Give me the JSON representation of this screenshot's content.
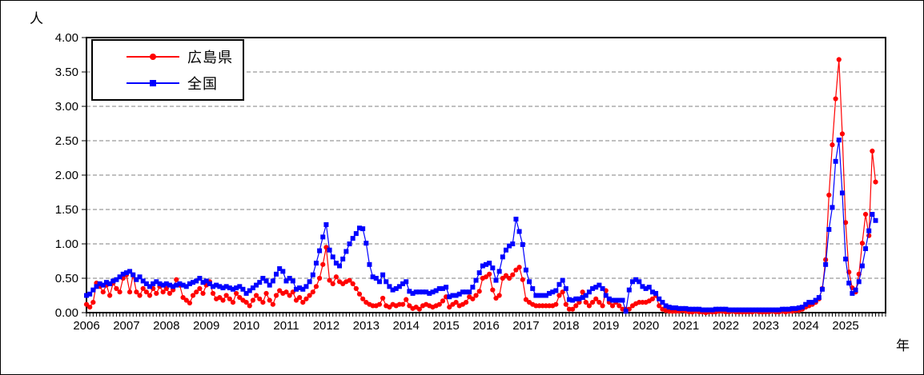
{
  "chart_data": {
    "type": "line",
    "title": "",
    "ylabel": "人",
    "xlabel": "年",
    "ylim": [
      0,
      4
    ],
    "ytick_step": 0.5,
    "ytick_labels": [
      "4.00",
      "3.50",
      "3.00",
      "2.50",
      "2.00",
      "1.50",
      "1.00",
      "0.50",
      "0.00"
    ],
    "x_years": [
      "2006",
      "2007",
      "2008",
      "2009",
      "2010",
      "2011",
      "2012",
      "2013",
      "2014",
      "2015",
      "2016",
      "2017",
      "2018",
      "2019",
      "2020",
      "2021",
      "2022",
      "2023",
      "2024",
      "2025"
    ],
    "frequency": "monthly",
    "start_month": "2006-01",
    "grid": "horizontal dashed",
    "grid_color": "#808080",
    "legend_position": "top-left-inside",
    "series": [
      {
        "name": "広島県",
        "color": "#FF0000",
        "marker": "circle",
        "values": [
          0.12,
          0.08,
          0.15,
          0.43,
          0.38,
          0.3,
          0.4,
          0.25,
          0.43,
          0.35,
          0.3,
          0.5,
          0.55,
          0.3,
          0.55,
          0.3,
          0.25,
          0.35,
          0.3,
          0.25,
          0.35,
          0.28,
          0.38,
          0.3,
          0.35,
          0.28,
          0.33,
          0.48,
          0.4,
          0.22,
          0.18,
          0.14,
          0.25,
          0.3,
          0.35,
          0.28,
          0.4,
          0.45,
          0.28,
          0.2,
          0.22,
          0.18,
          0.25,
          0.2,
          0.15,
          0.28,
          0.22,
          0.18,
          0.15,
          0.1,
          0.18,
          0.25,
          0.2,
          0.15,
          0.28,
          0.18,
          0.12,
          0.25,
          0.32,
          0.28,
          0.3,
          0.25,
          0.3,
          0.18,
          0.22,
          0.15,
          0.2,
          0.25,
          0.3,
          0.38,
          0.5,
          0.7,
          0.95,
          0.47,
          0.42,
          0.52,
          0.45,
          0.42,
          0.45,
          0.47,
          0.42,
          0.35,
          0.27,
          0.2,
          0.15,
          0.12,
          0.1,
          0.1,
          0.12,
          0.21,
          0.1,
          0.08,
          0.12,
          0.1,
          0.12,
          0.12,
          0.19,
          0.1,
          0.06,
          0.08,
          0.05,
          0.1,
          0.12,
          0.1,
          0.08,
          0.1,
          0.12,
          0.17,
          0.23,
          0.08,
          0.12,
          0.15,
          0.1,
          0.12,
          0.15,
          0.23,
          0.2,
          0.25,
          0.31,
          0.5,
          0.52,
          0.56,
          0.33,
          0.21,
          0.25,
          0.5,
          0.54,
          0.5,
          0.55,
          0.62,
          0.66,
          0.48,
          0.19,
          0.15,
          0.12,
          0.1,
          0.1,
          0.1,
          0.1,
          0.1,
          0.1,
          0.12,
          0.25,
          0.3,
          0.12,
          0.05,
          0.05,
          0.1,
          0.15,
          0.3,
          0.15,
          0.1,
          0.15,
          0.2,
          0.15,
          0.1,
          0.32,
          0.15,
          0.1,
          0.15,
          0.1,
          0.05,
          0.05,
          0.05,
          0.1,
          0.13,
          0.15,
          0.15,
          0.15,
          0.17,
          0.2,
          0.25,
          0.1,
          0.05,
          0.03,
          0.02,
          0.02,
          0.02,
          0.02,
          0.03,
          0.02,
          0.01,
          0.01,
          0.02,
          0.01,
          0.01,
          0.0,
          0.01,
          0.01,
          0.01,
          0.02,
          0.02,
          0.01,
          0.01,
          0.02,
          0.01,
          0.01,
          0.01,
          0.01,
          0.01,
          0.01,
          0.02,
          0.01,
          0.01,
          0.01,
          0.01,
          0.02,
          0.01,
          0.01,
          0.02,
          0.01,
          0.02,
          0.02,
          0.03,
          0.03,
          0.05,
          0.08,
          0.1,
          0.12,
          0.15,
          0.2,
          0.35,
          0.77,
          1.71,
          2.44,
          3.11,
          3.68,
          2.6,
          1.31,
          0.59,
          0.36,
          0.3,
          0.56,
          1.01,
          1.43,
          1.12,
          2.35,
          1.9
        ]
      },
      {
        "name": "全国",
        "color": "#0000FF",
        "marker": "square",
        "values": [
          0.25,
          0.27,
          0.33,
          0.38,
          0.42,
          0.4,
          0.44,
          0.42,
          0.46,
          0.48,
          0.52,
          0.56,
          0.58,
          0.6,
          0.55,
          0.48,
          0.52,
          0.46,
          0.42,
          0.38,
          0.42,
          0.45,
          0.42,
          0.4,
          0.42,
          0.4,
          0.38,
          0.4,
          0.42,
          0.4,
          0.38,
          0.42,
          0.44,
          0.46,
          0.5,
          0.44,
          0.46,
          0.42,
          0.38,
          0.4,
          0.38,
          0.36,
          0.38,
          0.36,
          0.34,
          0.36,
          0.38,
          0.34,
          0.28,
          0.32,
          0.36,
          0.4,
          0.44,
          0.5,
          0.46,
          0.4,
          0.46,
          0.56,
          0.64,
          0.6,
          0.46,
          0.5,
          0.46,
          0.34,
          0.36,
          0.34,
          0.38,
          0.45,
          0.55,
          0.72,
          0.9,
          1.1,
          1.28,
          0.91,
          0.81,
          0.72,
          0.68,
          0.78,
          0.89,
          1.0,
          1.08,
          1.15,
          1.23,
          1.22,
          1.01,
          0.7,
          0.52,
          0.5,
          0.45,
          0.55,
          0.45,
          0.38,
          0.33,
          0.35,
          0.38,
          0.42,
          0.45,
          0.31,
          0.28,
          0.3,
          0.3,
          0.3,
          0.3,
          0.28,
          0.3,
          0.32,
          0.35,
          0.35,
          0.37,
          0.23,
          0.25,
          0.25,
          0.27,
          0.3,
          0.3,
          0.3,
          0.37,
          0.47,
          0.58,
          0.68,
          0.7,
          0.72,
          0.65,
          0.47,
          0.6,
          0.81,
          0.91,
          0.97,
          1.0,
          1.36,
          1.18,
          0.99,
          0.62,
          0.45,
          0.35,
          0.25,
          0.25,
          0.25,
          0.25,
          0.28,
          0.3,
          0.32,
          0.41,
          0.47,
          0.35,
          0.19,
          0.18,
          0.2,
          0.2,
          0.22,
          0.25,
          0.3,
          0.35,
          0.37,
          0.4,
          0.35,
          0.25,
          0.2,
          0.18,
          0.18,
          0.18,
          0.18,
          0.02,
          0.33,
          0.45,
          0.48,
          0.45,
          0.38,
          0.35,
          0.37,
          0.3,
          0.28,
          0.2,
          0.15,
          0.1,
          0.08,
          0.07,
          0.07,
          0.06,
          0.06,
          0.06,
          0.05,
          0.05,
          0.05,
          0.05,
          0.04,
          0.04,
          0.04,
          0.04,
          0.05,
          0.05,
          0.05,
          0.05,
          0.04,
          0.04,
          0.04,
          0.04,
          0.04,
          0.04,
          0.04,
          0.04,
          0.04,
          0.04,
          0.04,
          0.04,
          0.04,
          0.04,
          0.04,
          0.04,
          0.05,
          0.05,
          0.05,
          0.06,
          0.06,
          0.07,
          0.08,
          0.12,
          0.15,
          0.15,
          0.18,
          0.22,
          0.34,
          0.7,
          1.21,
          1.53,
          2.2,
          2.51,
          1.74,
          0.78,
          0.43,
          0.28,
          0.33,
          0.45,
          0.68,
          0.93,
          1.19,
          1.43,
          1.34
        ]
      }
    ]
  }
}
